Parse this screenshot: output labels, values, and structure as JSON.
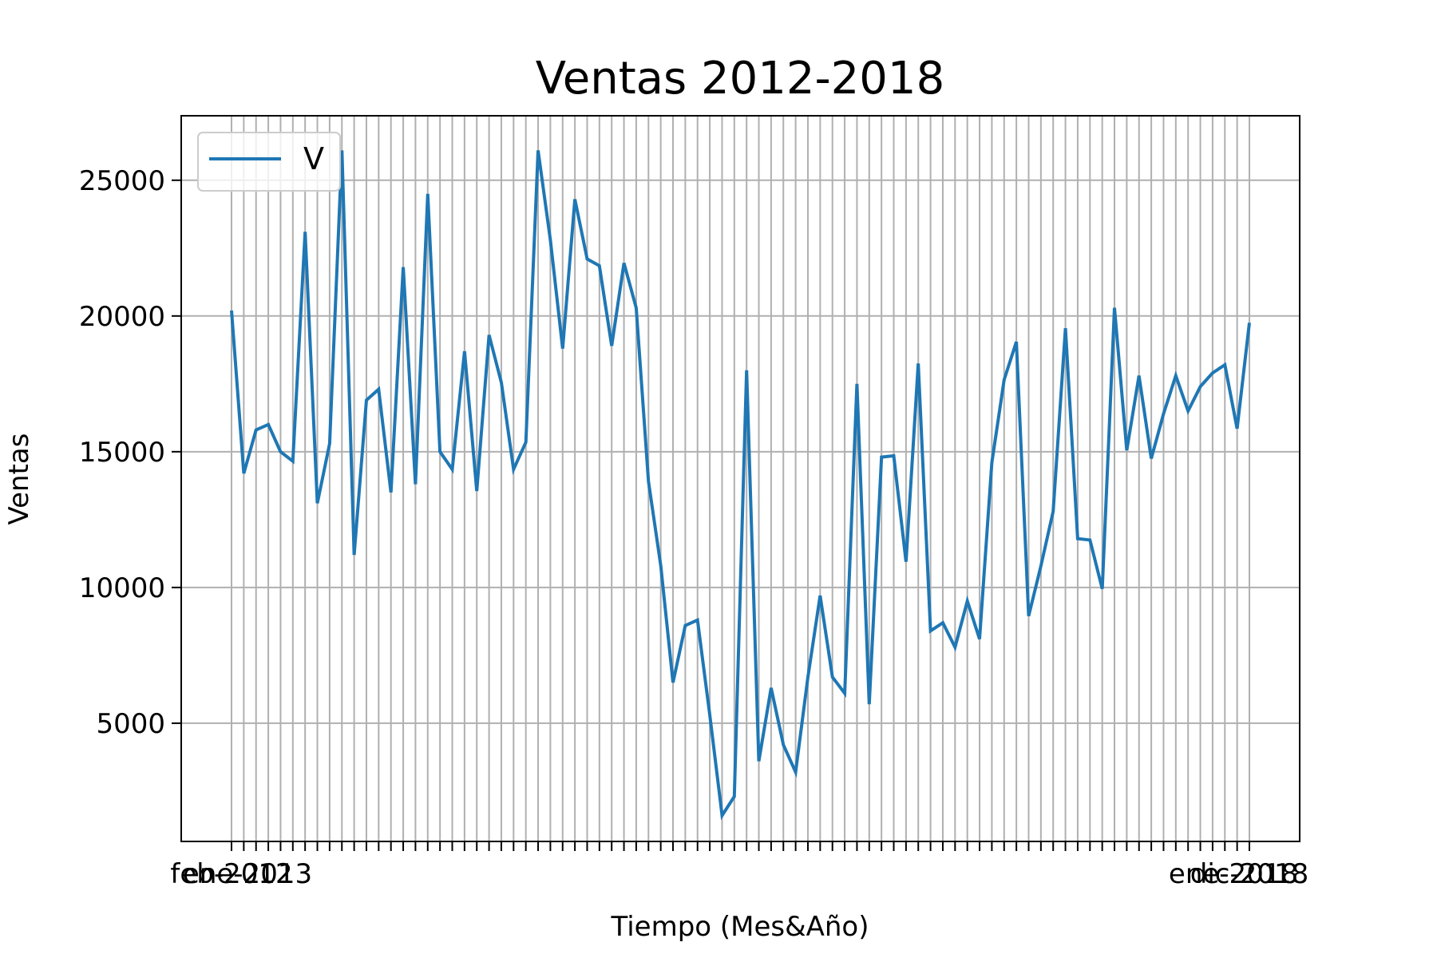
{
  "chart_data": {
    "type": "line",
    "title": "Ventas 2012-2018",
    "xlabel": "Tiempo (Mes&Año)",
    "ylabel": "Ventas",
    "ylim": [
      645,
      27375
    ],
    "yticks": [
      5000,
      10000,
      15000,
      20000,
      25000
    ],
    "grid": true,
    "legend_position": "upper-left",
    "series": [
      {
        "name": "V",
        "color": "#1f77b4",
        "values": [
          20200,
          14200,
          15800,
          16000,
          15000,
          14650,
          23100,
          13100,
          15300,
          26100,
          11200,
          16900,
          17300,
          13500,
          21800,
          13800,
          24500,
          15000,
          14350,
          18700,
          13550,
          19300,
          17550,
          14350,
          15350,
          26100,
          22800,
          18800,
          24300,
          22100,
          21850,
          18900,
          21950,
          20300,
          13900,
          10800,
          6500,
          8600,
          8800,
          5300,
          1600,
          2300,
          18000,
          3600,
          6300,
          4200,
          3200,
          6700,
          9700,
          6700,
          6100,
          17500,
          5700,
          14800,
          14850,
          10950,
          18250,
          8400,
          8700,
          7800,
          9500,
          8100,
          14600,
          17650,
          19050,
          8950,
          10800,
          12800,
          19550,
          11800,
          11750,
          9950,
          20300,
          15050,
          17800,
          14750,
          16400,
          17800,
          16500,
          17400,
          17900,
          18200,
          15850,
          19750
        ]
      }
    ],
    "tick_label_sample": [
      "feb-2012",
      "ene-2013",
      "ene-2018",
      "dic-2018"
    ]
  }
}
